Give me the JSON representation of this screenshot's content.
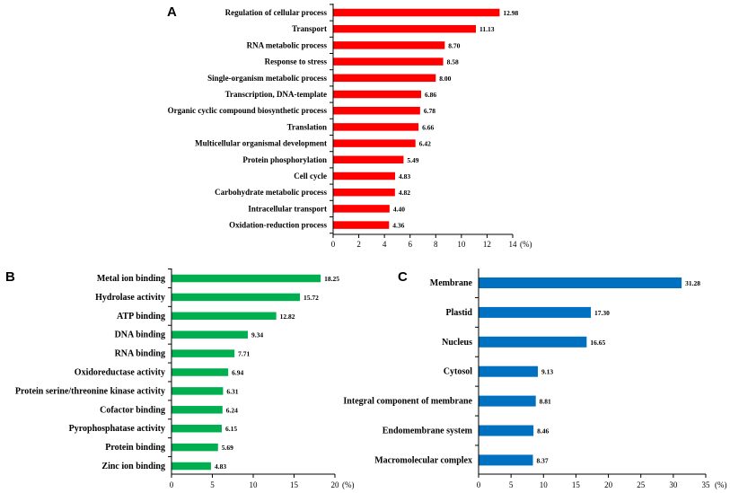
{
  "chart_data": [
    {
      "panel": "A",
      "type": "bar",
      "orientation": "horizontal",
      "color": "#ff0000",
      "categories": [
        "Regulation of cellular process",
        "Transport",
        "RNA metabolic process",
        "Response to stress",
        "Single-organism metabolic process",
        "Transcription, DNA-template",
        "Organic cyclic compound biosynthetic process",
        "Translation",
        "Multicellular organismal development",
        "Protein phosphorylation",
        "Cell cycle",
        "Carbohydrate metabolic process",
        "Intracellular transport",
        "Oxidation-reduction process"
      ],
      "values": [
        12.98,
        11.13,
        8.7,
        8.58,
        8.0,
        6.86,
        6.78,
        6.66,
        6.42,
        5.49,
        4.83,
        4.82,
        4.4,
        4.36
      ],
      "value_labels": [
        "12.98",
        "11.13",
        "8.70",
        "8.58",
        "8.00",
        "6.86",
        "6.78",
        "6.66",
        "6.42",
        "5.49",
        "4.83",
        "4.82",
        "4.40",
        "4.36"
      ],
      "xlim": [
        0,
        14
      ],
      "ticks": [
        "0",
        "2",
        "4",
        "6",
        "8",
        "10",
        "12",
        "14"
      ],
      "unit": "(%)"
    },
    {
      "panel": "B",
      "type": "bar",
      "orientation": "horizontal",
      "color": "#00b050",
      "categories": [
        "Metal ion binding",
        "Hydrolase activity",
        "ATP binding",
        "DNA binding",
        "RNA binding",
        "Oxidoreductase activity",
        "Protein serine/threonine kinase activity",
        "Cofactor binding",
        "Pyrophosphatase activity",
        "Protein binding",
        "Zinc ion binding"
      ],
      "values": [
        18.25,
        15.72,
        12.82,
        9.34,
        7.71,
        6.94,
        6.31,
        6.24,
        6.15,
        5.69,
        4.83
      ],
      "value_labels": [
        "18.25",
        "15.72",
        "12.82",
        "9.34",
        "7.71",
        "6.94",
        "6.31",
        "6.24",
        "6.15",
        "5.69",
        "4.83"
      ],
      "xlim": [
        0,
        20
      ],
      "ticks": [
        "0",
        "5",
        "10",
        "15",
        "20"
      ],
      "unit": "(%)"
    },
    {
      "panel": "C",
      "type": "bar",
      "orientation": "horizontal",
      "color": "#0070c0",
      "categories": [
        "Membrane",
        "Plastid",
        "Nucleus",
        "Cytosol",
        "Integral component of membrane",
        "Endomembrane system",
        "Macromolecular complex"
      ],
      "values": [
        31.28,
        17.3,
        16.65,
        9.13,
        8.81,
        8.46,
        8.37
      ],
      "value_labels": [
        "31.28",
        "17.30",
        "16.65",
        "9.13",
        "8.81",
        "8.46",
        "8.37"
      ],
      "xlim": [
        0,
        35
      ],
      "ticks": [
        "0",
        "5",
        "10",
        "15",
        "20",
        "25",
        "30",
        "35"
      ],
      "unit": "(%)"
    }
  ]
}
